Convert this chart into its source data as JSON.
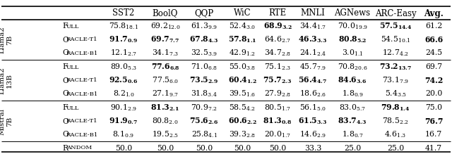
{
  "col_headers": [
    "SST2",
    "BoolQ",
    "QQP",
    "WiC",
    "RTE",
    "MNLI",
    "AGNews",
    "ARC-Easy",
    "Avg."
  ],
  "row_groups": [
    {
      "group_label": "Llama2\n7B",
      "rows": [
        {
          "row_label": "Full",
          "values": [
            "75.8",
            "69.2",
            "61.3",
            "52.4",
            "68.9",
            "34.4",
            "70.0",
            "57.5",
            "61.2"
          ],
          "subs": [
            "18.1",
            "12.0",
            "9.9",
            "3.0",
            "3.2",
            "1.7",
            "19.9",
            "14.4",
            ""
          ],
          "bold": [
            false,
            false,
            false,
            false,
            true,
            false,
            false,
            true,
            false
          ]
        },
        {
          "row_label": "Oracle-T1",
          "values": [
            "91.7",
            "69.7",
            "67.8",
            "57.8",
            "64.6",
            "46.3",
            "80.8",
            "54.5",
            "66.6"
          ],
          "subs": [
            "0.9",
            "7.7",
            "4.3",
            "1.1",
            "2.7",
            "3.3",
            "5.2",
            "10.1",
            ""
          ],
          "bold": [
            true,
            true,
            true,
            true,
            false,
            true,
            true,
            false,
            true
          ]
        },
        {
          "row_label": "Oracle-B1",
          "values": [
            "12.1",
            "34.1",
            "32.5",
            "42.9",
            "34.7",
            "24.1",
            "3.0",
            "12.7",
            "24.5"
          ],
          "subs": [
            "2.7",
            "7.3",
            "3.9",
            "1.2",
            "2.8",
            "2.4",
            "1.1",
            "4.2",
            ""
          ],
          "bold": [
            false,
            false,
            false,
            false,
            false,
            false,
            false,
            false,
            false
          ]
        }
      ]
    },
    {
      "group_label": "Llama2\n13B",
      "rows": [
        {
          "row_label": "Full",
          "values": [
            "89.0",
            "77.6",
            "71.0",
            "55.0",
            "75.1",
            "45.7",
            "70.8",
            "73.2",
            "69.7"
          ],
          "subs": [
            "5.3",
            "6.8",
            "6.8",
            "3.8",
            "2.3",
            "7.9",
            "20.6",
            "13.7",
            ""
          ],
          "bold": [
            false,
            true,
            false,
            false,
            false,
            false,
            false,
            true,
            false
          ]
        },
        {
          "row_label": "Oracle-T1",
          "values": [
            "92.5",
            "77.5",
            "73.5",
            "60.4",
            "75.7",
            "56.4",
            "84.6",
            "73.1",
            "74.2"
          ],
          "subs": [
            "0.6",
            "6.0",
            "2.9",
            "1.2",
            "2.3",
            "4.7",
            "3.6",
            "7.9",
            ""
          ],
          "bold": [
            true,
            false,
            true,
            true,
            true,
            true,
            true,
            false,
            true
          ]
        },
        {
          "row_label": "Oracle-B1",
          "values": [
            "8.2",
            "27.1",
            "31.8",
            "39.5",
            "27.9",
            "18.6",
            "1.8",
            "5.4",
            "20.0"
          ],
          "subs": [
            "1.0",
            "9.7",
            "3.4",
            "1.6",
            "2.8",
            "2.6",
            "0.9",
            "3.5",
            ""
          ],
          "bold": [
            false,
            false,
            false,
            false,
            false,
            false,
            false,
            false,
            false
          ]
        }
      ]
    },
    {
      "group_label": "Mistral\n7B",
      "rows": [
        {
          "row_label": "Full",
          "values": [
            "90.1",
            "81.3",
            "70.9",
            "58.5",
            "80.5",
            "56.1",
            "83.0",
            "79.8",
            "75.0"
          ],
          "subs": [
            "2.9",
            "2.1",
            "7.2",
            "4.2",
            "1.7",
            "5.0",
            "5.7",
            "1.4",
            ""
          ],
          "bold": [
            false,
            true,
            false,
            false,
            false,
            false,
            false,
            true,
            false
          ]
        },
        {
          "row_label": "Oracle-T1",
          "values": [
            "91.9",
            "80.8",
            "75.6",
            "60.6",
            "81.3",
            "61.5",
            "83.7",
            "78.5",
            "76.7"
          ],
          "subs": [
            "0.7",
            "2.0",
            "2.6",
            "2.2",
            "0.8",
            "3.3",
            "4.3",
            "2.2",
            ""
          ],
          "bold": [
            true,
            false,
            true,
            true,
            true,
            true,
            true,
            false,
            true
          ]
        },
        {
          "row_label": "Oracle-B1",
          "values": [
            "8.1",
            "19.5",
            "25.8",
            "39.3",
            "20.0",
            "14.6",
            "1.8",
            "4.6",
            "16.7"
          ],
          "subs": [
            "0.9",
            "2.5",
            "4.1",
            "2.8",
            "1.7",
            "2.9",
            "0.7",
            "1.3",
            ""
          ],
          "bold": [
            false,
            false,
            false,
            false,
            false,
            false,
            false,
            false,
            false
          ]
        }
      ]
    }
  ],
  "random_row": {
    "row_label": "Random",
    "values": [
      "50.0",
      "50.0",
      "50.0",
      "50.0",
      "50.0",
      "33.3",
      "25.0",
      "25.0",
      "41.7"
    ],
    "subs": [
      "",
      "",
      "",
      "",
      "",
      "",
      "",
      "",
      ""
    ],
    "bold": [
      false,
      false,
      false,
      false,
      false,
      false,
      false,
      false,
      false
    ]
  }
}
